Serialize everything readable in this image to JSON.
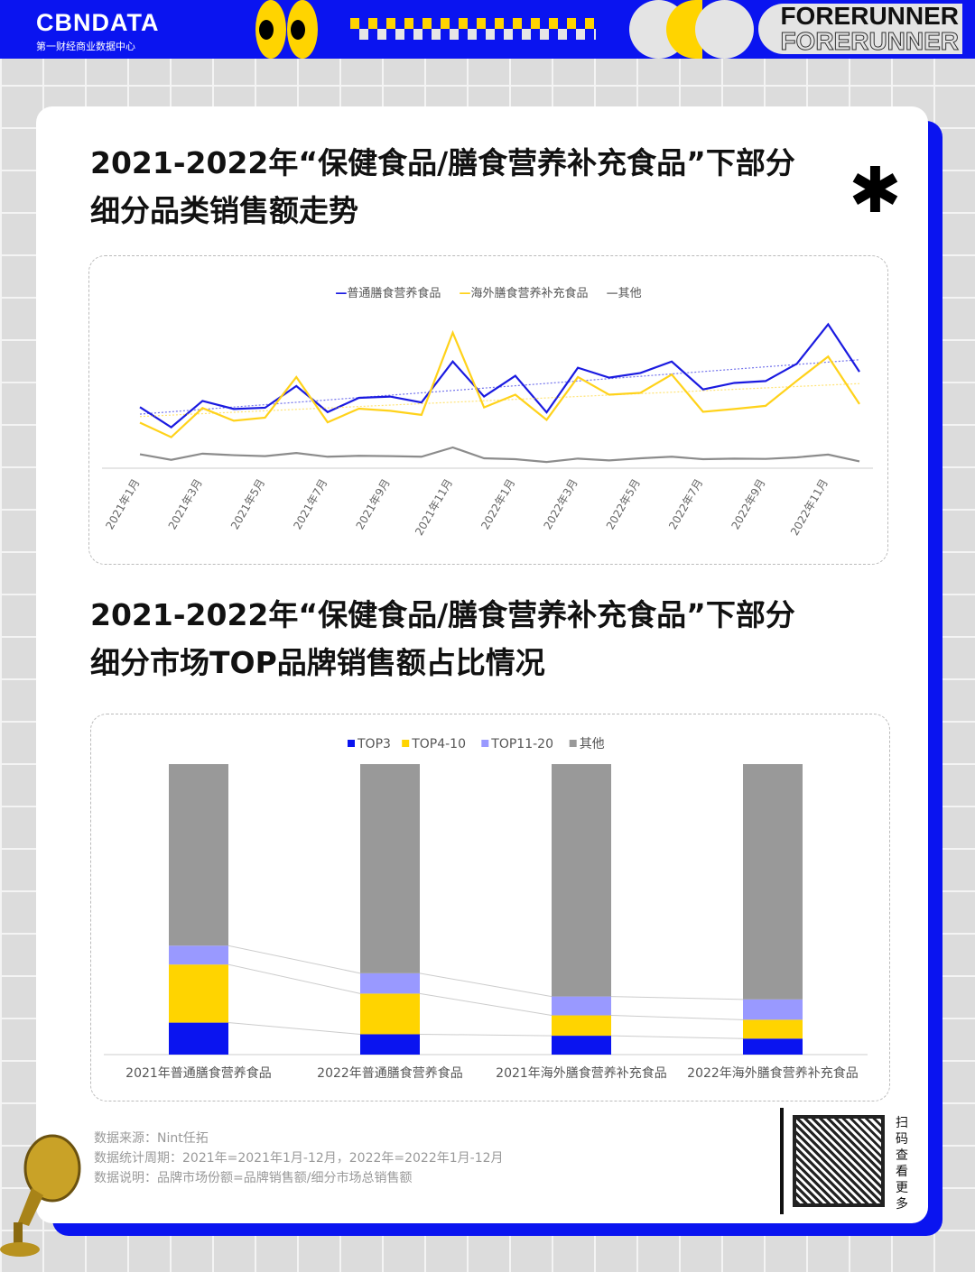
{
  "header": {
    "logo": "CBNDATA",
    "logo_sub": "第一财经商业数据中心",
    "brand_line1": "FORERUNNER",
    "brand_line2": "FORERUNNER"
  },
  "colors": {
    "blue": "#0a14f0",
    "yellow": "#ffd400",
    "light_purple": "#9999ff",
    "gray": "#999999"
  },
  "section1": {
    "title": "2021-2022年“保健食品/膳食营养补充食品”下部分细分品类销售额走势"
  },
  "section2": {
    "title": "2021-2022年“保健食品/膳食营养补充食品”下部分细分市场TOP品牌销售额占比情况"
  },
  "chart_data": [
    {
      "type": "line",
      "title": "",
      "y_axis_shown": false,
      "trendlines": "linear, dotted, for first two series",
      "legend": "top",
      "x": [
        "2021年1月",
        "2021年2月",
        "2021年3月",
        "2021年4月",
        "2021年5月",
        "2021年6月",
        "2021年7月",
        "2021年8月",
        "2021年9月",
        "2021年10月",
        "2021年11月",
        "2021年12月",
        "2022年1月",
        "2022年2月",
        "2022年3月",
        "2022年4月",
        "2022年5月",
        "2022年6月",
        "2022年7月",
        "2022年8月",
        "2022年9月",
        "2022年10月",
        "2022年11月",
        "2022年12月"
      ],
      "tick_labels": [
        "2021年1月",
        "2021年3月",
        "2021年5月",
        "2021年7月",
        "2021年9月",
        "2021年11月",
        "2022年1月",
        "2022年3月",
        "2022年5月",
        "2022年7月",
        "2022年9月",
        "2022年11月"
      ],
      "ylim": [
        0,
        480
      ],
      "series": [
        {
          "name": "普通膳食营养食品",
          "color": "#1a1ae0",
          "values": [
            197,
            132,
            217,
            191,
            195,
            265,
            181,
            227,
            231,
            212,
            344,
            231,
            298,
            180,
            324,
            292,
            307,
            344,
            254,
            275,
            281,
            337,
            464,
            311
          ]
        },
        {
          "name": "海外膳食营养补充食品",
          "color": "#ffd21a",
          "values": [
            147,
            100,
            194,
            153,
            163,
            294,
            148,
            192,
            185,
            172,
            437,
            196,
            237,
            156,
            294,
            237,
            243,
            302,
            182,
            191,
            201,
            282,
            360,
            207
          ]
        },
        {
          "name": "其他",
          "color": "#8c8c8c",
          "values": [
            45,
            27,
            47,
            42,
            39,
            49,
            37,
            40,
            39,
            37,
            67,
            32,
            29,
            20,
            31,
            25,
            32,
            37,
            29,
            31,
            30,
            35,
            44,
            22
          ]
        }
      ]
    },
    {
      "type": "bar",
      "stacked": true,
      "unit": "%",
      "ylim": [
        0,
        100
      ],
      "legend": "top",
      "connector_lines": true,
      "categories": [
        "2021年普通膳食营养食品",
        "2022年普通膳食营养食品",
        "2021年海外膳食营养补充食品",
        "2022年海外膳食营养补充食品"
      ],
      "series": [
        {
          "name": "TOP3",
          "color": "#0a14f0",
          "values": [
            11,
            7,
            6.5,
            5.5
          ]
        },
        {
          "name": "TOP4-10",
          "color": "#ffd400",
          "values": [
            20,
            14,
            7,
            6.5
          ]
        },
        {
          "name": "TOP11-20",
          "color": "#9999ff",
          "values": [
            6.5,
            7,
            6.5,
            7
          ]
        },
        {
          "name": "其他",
          "color": "#999999",
          "values": [
            62.5,
            72,
            80,
            81
          ]
        }
      ]
    }
  ],
  "notes": [
    "数据来源：Nint任拓",
    "数据统计周期：2021年=2021年1月-12月，2022年=2022年1月-12月",
    "数据说明：品牌市场份额=品牌销售额/细分市场总销售额"
  ],
  "qr": {
    "label": "扫码查看更多"
  }
}
